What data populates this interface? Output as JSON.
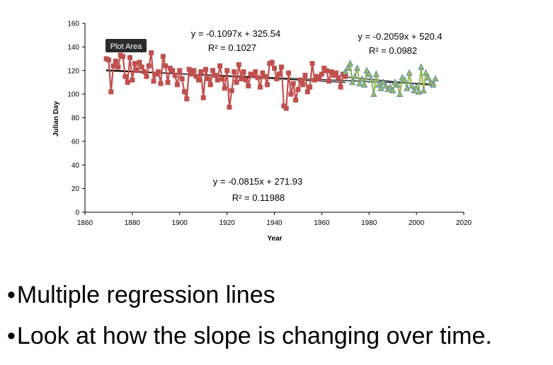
{
  "chart_data": {
    "type": "line",
    "xlabel": "Year",
    "ylabel": "Julian Day",
    "xlim": [
      1860,
      2020
    ],
    "ylim": [
      0,
      160
    ],
    "x_ticks": [
      1860,
      1880,
      1900,
      1920,
      1940,
      1960,
      1980,
      2000,
      2020
    ],
    "y_ticks": [
      0,
      20,
      40,
      60,
      80,
      100,
      120,
      140,
      160
    ],
    "grid": false,
    "series": [
      {
        "color": "#c0504d",
        "marker": "square",
        "x": [
          1869,
          1870,
          1871,
          1872,
          1873,
          1874,
          1875,
          1876,
          1877,
          1878,
          1879,
          1880,
          1881,
          1882,
          1883,
          1884,
          1885,
          1886,
          1887,
          1888,
          1889,
          1890,
          1891,
          1892,
          1893,
          1894,
          1895,
          1896,
          1897,
          1898,
          1899,
          1900,
          1901,
          1902,
          1903,
          1904,
          1905,
          1906,
          1907,
          1908,
          1909,
          1910,
          1911,
          1912,
          1913,
          1914,
          1915,
          1916,
          1917,
          1918,
          1919,
          1920,
          1921,
          1922,
          1923,
          1924,
          1925,
          1926,
          1927,
          1928,
          1929,
          1930,
          1931,
          1932,
          1933,
          1934,
          1935,
          1936,
          1937,
          1938,
          1939,
          1940,
          1941,
          1942,
          1943,
          1944,
          1945,
          1946,
          1947,
          1948,
          1949,
          1950,
          1951,
          1952,
          1953,
          1954,
          1955,
          1956,
          1957,
          1958,
          1959,
          1960,
          1961,
          1962,
          1963,
          1964,
          1965,
          1966,
          1967,
          1968,
          1969,
          1970
        ],
        "y": [
          130,
          129,
          102,
          124,
          128,
          123,
          133,
          132,
          115,
          110,
          131,
          112,
          126,
          120,
          127,
          123,
          119,
          115,
          124,
          135,
          111,
          117,
          119,
          109,
          132,
          124,
          110,
          122,
          120,
          116,
          108,
          120,
          113,
          102,
          96,
          121,
          117,
          120,
          115,
          112,
          119,
          97,
          121,
          113,
          108,
          120,
          116,
          112,
          124,
          113,
          105,
          120,
          89,
          103,
          119,
          110,
          125,
          113,
          119,
          112,
          107,
          117,
          116,
          119,
          114,
          106,
          118,
          115,
          108,
          126,
          127,
          122,
          113,
          117,
          123,
          90,
          88,
          118,
          100,
          109,
          95,
          104,
          112,
          108,
          116,
          102,
          106,
          126,
          112,
          115,
          113,
          117,
          122,
          120,
          111,
          119,
          116,
          118,
          114,
          106,
          117,
          115
        ]
      },
      {
        "color": "#9bbb59",
        "marker": "triangle",
        "x": [
          1970,
          1971,
          1972,
          1973,
          1974,
          1975,
          1976,
          1977,
          1978,
          1979,
          1980,
          1981,
          1982,
          1983,
          1984,
          1985,
          1986,
          1987,
          1988,
          1989,
          1990,
          1991,
          1992,
          1993,
          1994,
          1995,
          1996,
          1997,
          1998,
          1999,
          2000,
          2001,
          2002,
          2003,
          2004,
          2005,
          2006,
          2007,
          2008
        ],
        "y": [
          119,
          122,
          126,
          110,
          115,
          122,
          109,
          113,
          108,
          120,
          117,
          112,
          100,
          117,
          108,
          105,
          110,
          107,
          104,
          106,
          103,
          110,
          108,
          100,
          114,
          112,
          105,
          118,
          107,
          103,
          106,
          102,
          123,
          103,
          118,
          114,
          110,
          108,
          113
        ]
      }
    ],
    "trendlines": [
      {
        "target": "red",
        "x_range": [
          1869,
          1970
        ],
        "color": "#000000"
      },
      {
        "target": "green",
        "x_range": [
          1970,
          2008
        ],
        "color": "#000000"
      },
      {
        "target": "all",
        "x_range": [
          1869,
          2008
        ],
        "color": "#000000"
      }
    ],
    "equations": [
      {
        "eq": "y = -0.1097x + 325.54",
        "r2": "R² = 0.1027"
      },
      {
        "eq": "y = -0.2059x + 520.4",
        "r2": "R² = 0.0982"
      },
      {
        "eq": "y = -0.0815x + 271.93",
        "r2": "R² = 0.11988"
      }
    ],
    "tooltip": "Plot Area"
  },
  "bullets": [
    {
      "dot": "•",
      "text": "Multiple regression lines"
    },
    {
      "dot": "•",
      "text": "Look at how the slope is changing over time."
    }
  ]
}
